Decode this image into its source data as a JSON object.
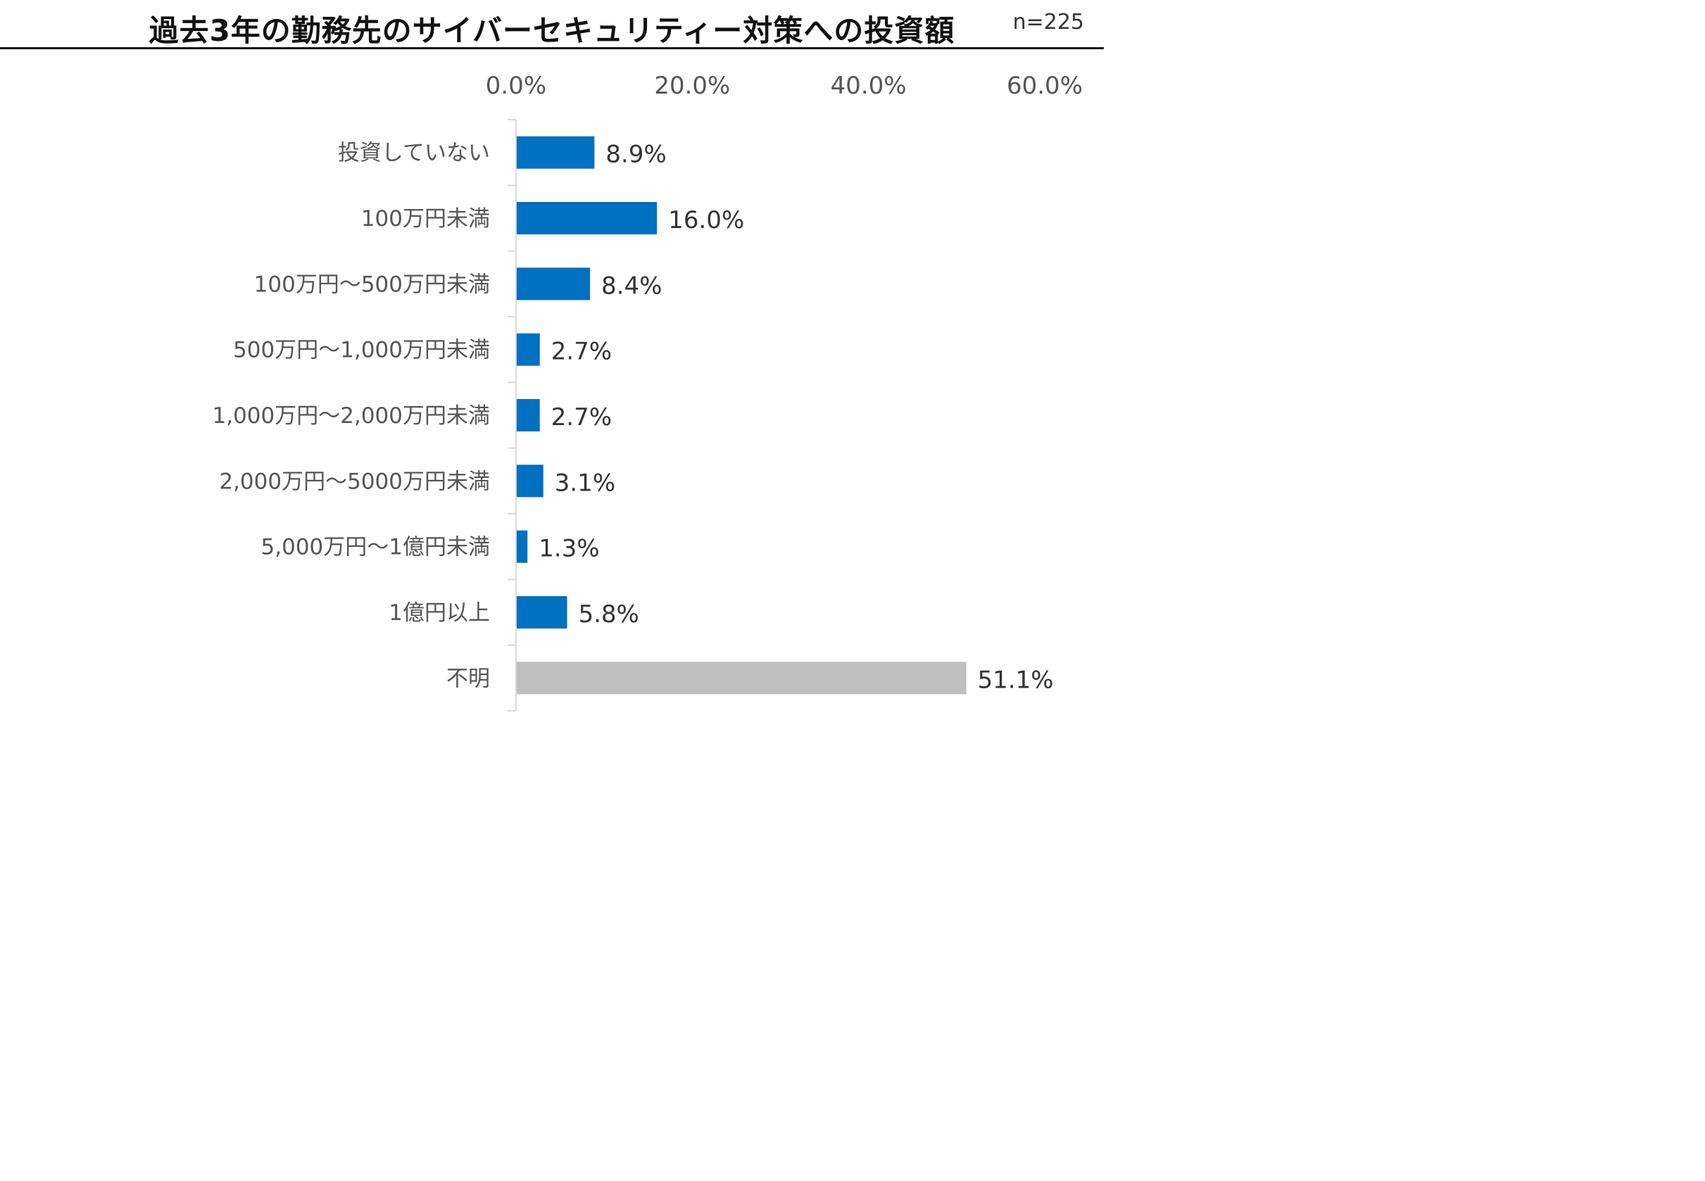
{
  "title": "過去3年の勤務先のサイバーセキュリティー対策への投資額",
  "sample_size": "n=225",
  "colors": {
    "bar": "#0070C0",
    "bar_unknown": "#BFBFBF",
    "axis": "#D9D9D9"
  },
  "chart_data": {
    "type": "bar",
    "orientation": "horizontal",
    "title": "過去3年の勤務先のサイバーセキュリティー対策への投資額",
    "xlabel": "",
    "ylabel": "",
    "xlim": [
      0,
      60
    ],
    "x_ticks": [
      0,
      20,
      40,
      60
    ],
    "x_tick_labels": [
      "0.0%",
      "20.0%",
      "40.0%",
      "60.0%"
    ],
    "axis_position": "top",
    "grid": false,
    "legend": "none",
    "categories": [
      "投資していない",
      "100万円未満",
      "100万円～500万円未満",
      "500万円～1,000万円未満",
      "1,000万円～2,000万円未満",
      "2,000万円～5000万円未満",
      "5,000万円～1億円未満",
      "1億円以上",
      "不明"
    ],
    "values": [
      8.9,
      16.0,
      8.4,
      2.7,
      2.7,
      3.1,
      1.3,
      5.8,
      51.1
    ],
    "value_labels": [
      "8.9%",
      "16.0%",
      "8.4%",
      "2.7%",
      "2.7%",
      "3.1%",
      "1.3%",
      "5.8%",
      "51.1%"
    ],
    "bar_colors": [
      "#0070C0",
      "#0070C0",
      "#0070C0",
      "#0070C0",
      "#0070C0",
      "#0070C0",
      "#0070C0",
      "#0070C0",
      "#BFBFBF"
    ]
  }
}
